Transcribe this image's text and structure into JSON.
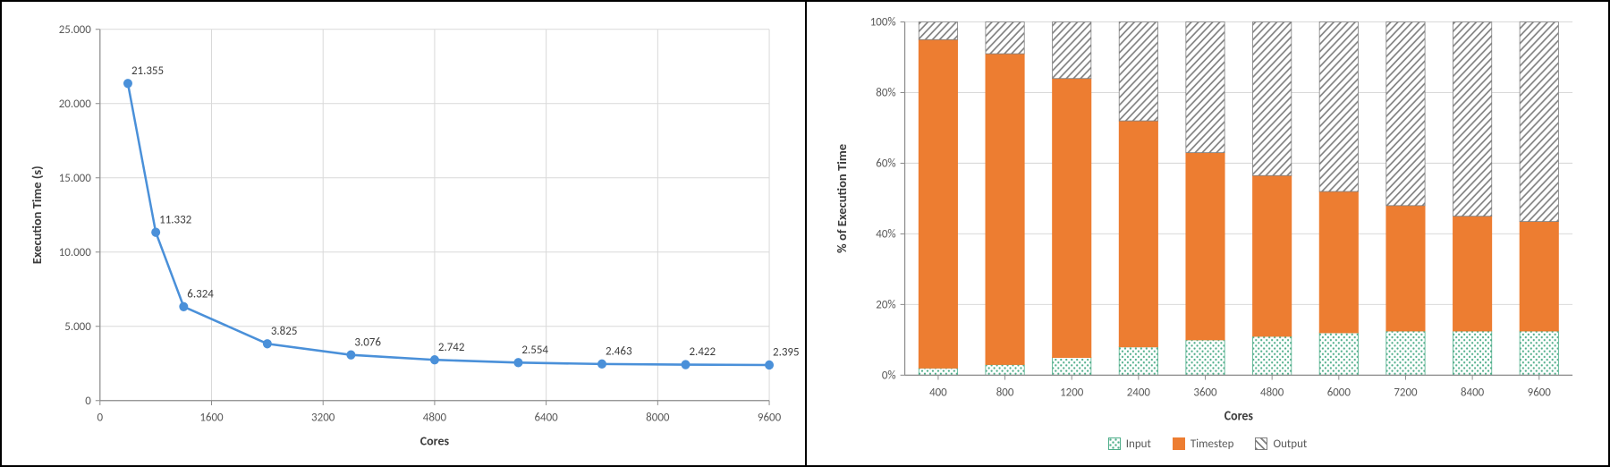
{
  "line_chart": {
    "type": "line",
    "title": "",
    "xlabel": "Cores",
    "ylabel": "Execution Time (s)",
    "label_fontsize": 14,
    "tick_fontsize": 13,
    "xlim": [
      0,
      9600
    ],
    "ylim": [
      0,
      25.0
    ],
    "xtick_step": 1600,
    "ytick_step": 5.0,
    "y_decimals": 3,
    "xticks": [
      0,
      1600,
      3200,
      4800,
      6400,
      8000,
      9600
    ],
    "yticks": [
      0,
      5.0,
      10.0,
      15.0,
      20.0,
      25.0
    ],
    "x": [
      400,
      800,
      1200,
      2400,
      3600,
      4800,
      6000,
      7200,
      8400,
      9600
    ],
    "y": [
      21.355,
      11.332,
      6.324,
      3.825,
      3.076,
      2.742,
      2.554,
      2.463,
      2.422,
      2.395
    ],
    "data_labels": [
      "21.355",
      "11.332",
      "6.324",
      "3.825",
      "3.076",
      "2.742",
      "2.554",
      "2.463",
      "2.422",
      "2.395"
    ],
    "line_color": "#4a90d9",
    "line_width": 2.5,
    "marker_color": "#4a90d9",
    "marker_radius": 5,
    "grid_color": "#d9d9d9",
    "background_color": "#ffffff",
    "axis_color": "#8c8c8c"
  },
  "stacked_chart": {
    "type": "stacked-bar",
    "title": "",
    "xlabel": "Cores",
    "ylabel": "% of Execution Time",
    "label_fontsize": 14,
    "tick_fontsize": 13,
    "ylim": [
      0,
      100
    ],
    "ytick_step": 20,
    "yticks": [
      0,
      20,
      40,
      60,
      80,
      100
    ],
    "ytick_labels": [
      "0%",
      "20%",
      "40%",
      "60%",
      "80%",
      "100%"
    ],
    "categories": [
      "400",
      "800",
      "1200",
      "2400",
      "3600",
      "4800",
      "6000",
      "7200",
      "8400",
      "9600"
    ],
    "series": [
      {
        "name": "Input",
        "legend_label": "Input",
        "values": [
          2,
          3,
          5,
          8,
          10,
          11,
          12,
          12.5,
          12.5,
          12.5
        ],
        "color": "#80d4b4",
        "pattern": "dots",
        "pattern_fg": "#4fae8a",
        "border_color": "#4fae8a"
      },
      {
        "name": "Timestep",
        "legend_label": "Timestep",
        "values": [
          93,
          88,
          79,
          64,
          53,
          45.5,
          40,
          35.5,
          32.5,
          31
        ],
        "color": "#ed7d31",
        "pattern": "solid",
        "border_color": "#ed7d31"
      },
      {
        "name": "Output",
        "legend_label": "Output",
        "values": [
          5,
          9,
          16,
          28,
          37,
          43.5,
          48,
          52,
          55,
          56.5
        ],
        "color": "#ffffff",
        "pattern": "diagonal",
        "pattern_fg": "#7f7f7f",
        "border_color": "#7f7f7f"
      }
    ],
    "bar_width_ratio": 0.58,
    "grid_color": "#d9d9d9",
    "background_color": "#ffffff",
    "axis_color": "#8c8c8c"
  }
}
